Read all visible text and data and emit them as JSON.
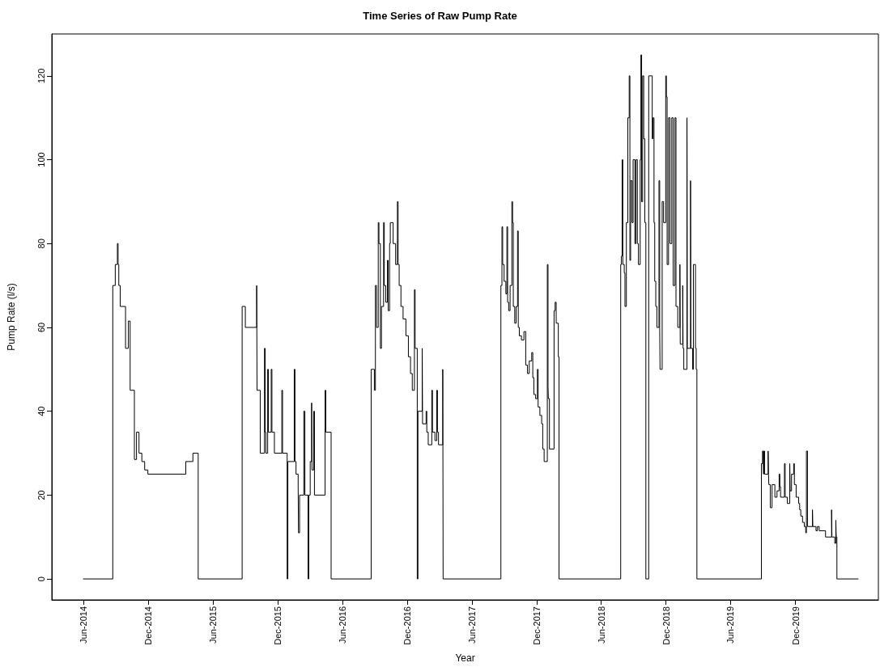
{
  "chart_data": {
    "type": "step",
    "title": "Time Series of Raw Pump Rate",
    "xlabel": "Year",
    "ylabel": "Pump Rate (l/s)",
    "xlim": [
      "2014-03-04",
      "2020-07-22"
    ],
    "ylim": [
      -5,
      130
    ],
    "xticks": [
      {
        "value": "2014-06-01",
        "label": "Jun-2014"
      },
      {
        "value": "2014-12-01",
        "label": "Dec-2014"
      },
      {
        "value": "2015-06-01",
        "label": "Jun-2015"
      },
      {
        "value": "2015-12-01",
        "label": "Dec-2015"
      },
      {
        "value": "2016-06-01",
        "label": "Jun-2016"
      },
      {
        "value": "2016-12-01",
        "label": "Dec-2016"
      },
      {
        "value": "2017-06-01",
        "label": "Jun-2017"
      },
      {
        "value": "2017-12-01",
        "label": "Dec-2017"
      },
      {
        "value": "2018-06-01",
        "label": "Jun-2018"
      },
      {
        "value": "2018-12-01",
        "label": "Dec-2018"
      },
      {
        "value": "2019-06-01",
        "label": "Jun-2019"
      },
      {
        "value": "2019-12-01",
        "label": "Dec-2019"
      }
    ],
    "yticks": [
      0,
      20,
      40,
      60,
      80,
      100,
      120
    ],
    "grid": false,
    "marker": "none",
    "line_style": "solid",
    "series": [
      {
        "color": "#000000",
        "x": [
          "2014-06-01",
          "2014-08-23",
          "2014-08-30",
          "2014-09-05",
          "2014-09-07",
          "2014-09-09",
          "2014-09-13",
          "2014-09-28",
          "2014-10-06",
          "2014-10-11",
          "2014-10-23",
          "2014-10-29",
          "2014-11-05",
          "2014-11-13",
          "2014-11-21",
          "2014-11-30",
          "2015-03-17",
          "2015-04-06",
          "2015-04-21",
          "2015-08-23",
          "2015-09-01",
          "2015-10-03",
          "2015-10-04",
          "2015-10-13",
          "2015-10-25",
          "2015-10-27",
          "2015-10-29",
          "2015-11-03",
          "2015-11-05",
          "2015-11-13",
          "2015-11-15",
          "2015-11-22",
          "2015-12-13",
          "2015-12-15",
          "2015-12-28",
          "2015-12-30",
          "2016-01-17",
          "2016-01-19",
          "2016-01-22",
          "2016-01-28",
          "2016-01-29",
          "2016-02-01",
          "2016-02-13",
          "2016-02-16",
          "2016-02-25",
          "2016-02-27",
          "2016-03-02",
          "2016-03-06",
          "2016-03-07",
          "2016-03-12",
          "2016-03-14",
          "2016-04-13",
          "2016-04-15",
          "2016-04-30",
          "2016-08-21",
          "2016-08-30",
          "2016-09-02",
          "2016-09-05",
          "2016-09-10",
          "2016-09-12",
          "2016-09-16",
          "2016-09-19",
          "2016-09-25",
          "2016-09-27",
          "2016-10-01",
          "2016-10-06",
          "2016-10-08",
          "2016-10-12",
          "2016-10-14",
          "2016-10-22",
          "2016-10-29",
          "2016-11-03",
          "2016-11-05",
          "2016-11-08",
          "2016-11-13",
          "2016-11-19",
          "2016-11-27",
          "2016-12-04",
          "2016-12-10",
          "2016-12-15",
          "2016-12-21",
          "2016-12-23",
          "2016-12-29",
          "2016-12-31",
          "2017-01-12",
          "2017-01-13",
          "2017-01-23",
          "2017-01-25",
          "2017-01-29",
          "2017-02-08",
          "2017-02-10",
          "2017-02-17",
          "2017-02-22",
          "2017-02-24",
          "2017-02-27",
          "2017-03-11",
          "2017-03-12",
          "2017-08-22",
          "2017-08-25",
          "2017-08-27",
          "2017-08-31",
          "2017-09-05",
          "2017-09-08",
          "2017-09-10",
          "2017-09-13",
          "2017-09-17",
          "2017-09-22",
          "2017-09-24",
          "2017-09-26",
          "2017-09-30",
          "2017-10-04",
          "2017-10-08",
          "2017-10-10",
          "2017-10-13",
          "2017-10-19",
          "2017-10-26",
          "2017-10-31",
          "2017-11-05",
          "2017-11-10",
          "2017-11-17",
          "2017-11-20",
          "2017-11-23",
          "2017-11-28",
          "2017-12-03",
          "2017-12-05",
          "2017-12-10",
          "2017-12-15",
          "2017-12-18",
          "2017-12-22",
          "2017-12-31",
          "2018-01-02",
          "2018-01-03",
          "2018-01-06",
          "2018-01-19",
          "2018-01-22",
          "2018-01-25",
          "2018-01-31",
          "2018-02-02",
          "2018-07-26",
          "2018-07-28",
          "2018-07-30",
          "2018-08-01",
          "2018-08-05",
          "2018-08-07",
          "2018-08-11",
          "2018-08-15",
          "2018-08-19",
          "2018-08-21",
          "2018-08-23",
          "2018-08-27",
          "2018-08-30",
          "2018-09-04",
          "2018-09-07",
          "2018-09-11",
          "2018-09-14",
          "2018-09-19",
          "2018-09-21",
          "2018-09-23",
          "2018-09-26",
          "2018-09-29",
          "2018-10-02",
          "2018-10-05",
          "2018-10-13",
          "2018-10-23",
          "2018-10-25",
          "2018-10-28",
          "2018-10-30",
          "2018-11-02",
          "2018-11-05",
          "2018-11-11",
          "2018-11-13",
          "2018-11-14",
          "2018-11-20",
          "2018-11-24",
          "2018-11-30",
          "2018-12-02",
          "2018-12-04",
          "2018-12-08",
          "2018-12-12",
          "2018-12-17",
          "2018-12-21",
          "2018-12-26",
          "2018-12-29",
          "2019-01-03",
          "2019-01-09",
          "2019-01-10",
          "2019-01-17",
          "2019-01-18",
          "2019-01-20",
          "2019-01-29",
          "2019-01-30",
          "2019-02-08",
          "2019-02-09",
          "2019-02-14",
          "2019-02-16",
          "2019-02-22",
          "2019-02-24",
          "2019-02-26",
          "2019-08-27",
          "2019-08-30",
          "2019-09-01",
          "2019-09-02",
          "2019-09-03",
          "2019-09-05",
          "2019-09-15",
          "2019-09-16",
          "2019-09-17",
          "2019-09-21",
          "2019-09-26",
          "2019-10-04",
          "2019-10-10",
          "2019-10-16",
          "2019-10-18",
          "2019-10-20",
          "2019-10-31",
          "2019-11-02",
          "2019-11-08",
          "2019-11-15",
          "2019-11-16",
          "2019-11-20",
          "2019-11-26",
          "2019-11-28",
          "2019-12-03",
          "2019-12-10",
          "2019-12-13",
          "2019-12-16",
          "2019-12-21",
          "2019-12-26",
          "2019-12-30",
          "2020-01-01",
          "2020-01-04",
          "2020-01-18",
          "2020-01-19",
          "2020-01-28",
          "2020-02-01",
          "2020-02-06",
          "2020-02-24",
          "2020-03-12",
          "2020-03-13",
          "2020-03-21",
          "2020-03-24",
          "2020-03-25",
          "2020-03-27",
          "2020-05-26"
        ],
        "values": [
          0,
          70,
          75,
          80,
          75,
          70,
          65,
          55,
          61.5,
          45,
          28.5,
          35,
          30,
          28,
          26,
          25,
          28,
          30,
          0,
          65,
          60,
          70,
          45,
          30,
          55,
          35,
          30,
          50,
          35,
          50,
          35,
          30,
          45,
          30,
          0,
          28,
          50,
          28,
          25,
          22,
          11,
          20,
          40,
          20,
          0,
          20,
          28,
          42,
          26,
          40,
          20,
          45,
          35,
          0,
          50,
          45,
          70,
          60,
          85,
          80,
          55,
          65,
          85,
          70,
          66,
          76,
          64,
          80,
          85,
          80,
          75,
          90,
          75,
          70,
          65,
          62,
          58,
          53,
          49,
          45,
          69,
          55,
          0,
          40,
          55,
          37,
          40,
          35,
          32,
          45,
          35,
          33,
          45,
          35,
          32,
          50,
          0,
          70,
          84,
          75,
          71,
          68,
          84,
          66,
          64,
          70,
          90,
          85,
          65,
          61,
          65,
          83,
          60,
          58,
          57,
          59,
          51,
          49,
          52,
          54,
          48,
          44,
          43,
          50,
          41,
          39,
          37,
          31,
          28,
          75,
          46,
          43,
          31,
          64,
          66,
          61,
          53,
          0,
          75,
          77,
          100,
          75,
          73,
          65,
          85,
          110,
          120,
          76,
          95,
          85,
          100,
          80,
          100,
          80,
          75,
          100,
          125,
          90,
          120,
          105,
          85,
          0,
          120,
          105,
          110,
          85,
          71,
          65,
          60,
          95,
          60,
          50,
          90,
          85,
          120,
          115,
          75,
          110,
          80,
          110,
          70,
          110,
          65,
          60,
          75,
          56,
          70,
          55,
          50,
          110,
          55,
          95,
          55,
          50,
          75,
          55,
          50,
          0,
          27.5,
          30.5,
          28,
          25,
          30.5,
          25,
          30.5,
          25,
          22.5,
          17,
          22.5,
          19.5,
          21,
          25,
          22,
          19.5,
          27.5,
          19.5,
          18,
          27.5,
          21,
          25,
          27.5,
          22.5,
          19.5,
          18,
          16.5,
          15,
          13.5,
          12.5,
          11,
          30.5,
          12.5,
          16.5,
          12.5,
          11.5,
          12.5,
          11.5,
          10,
          16.5,
          10,
          8.5,
          14,
          10,
          0,
          0
        ]
      }
    ]
  }
}
